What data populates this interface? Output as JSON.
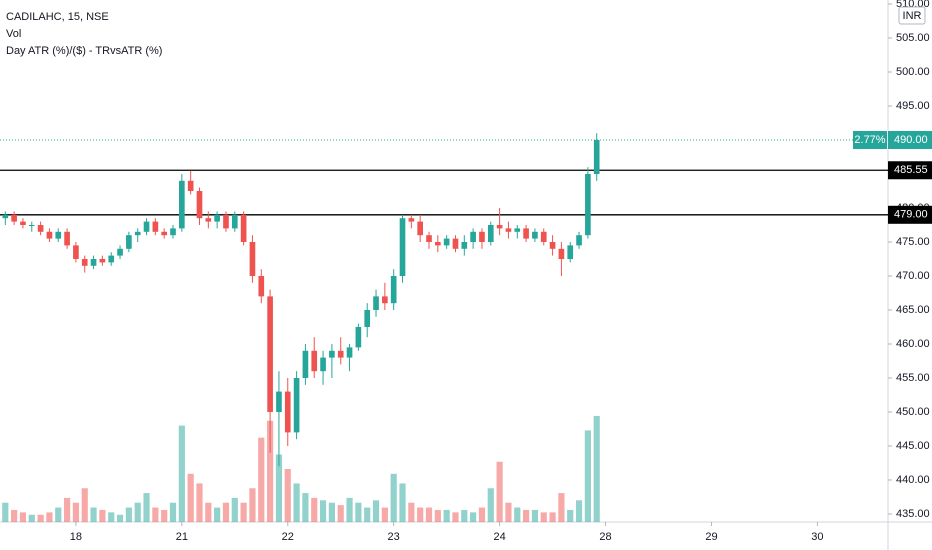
{
  "chart_data": {
    "type": "candlestick",
    "legend": [
      "CADILAHC, 15, NSE",
      "Vol",
      "Day ATR (%)/($) - TRvsATR (%)"
    ],
    "currency": "INR",
    "up_color": "#26a69a",
    "down_color": "#ef5350",
    "x": [
      0,
      1,
      2,
      3,
      4,
      5,
      6,
      7,
      8,
      9,
      10,
      11,
      12,
      13,
      14,
      15,
      16,
      17,
      18,
      19,
      20,
      21,
      22,
      23,
      24,
      25,
      26,
      27,
      28,
      29,
      30,
      31,
      32,
      33,
      34,
      35,
      36,
      37,
      38,
      39,
      40,
      41,
      42,
      43,
      44,
      45,
      46,
      47,
      48,
      49,
      50,
      51,
      52,
      53,
      54,
      55,
      56,
      57,
      58,
      59,
      60,
      61,
      62,
      63,
      64,
      65,
      66,
      67
    ],
    "ohlc": [
      [
        478.5,
        479.5,
        477.5,
        479
      ],
      [
        479,
        479.5,
        477.5,
        478
      ],
      [
        478,
        478.5,
        477,
        477.5
      ],
      [
        477.5,
        478,
        476.5,
        477.5
      ],
      [
        477.5,
        478,
        476,
        476.5
      ],
      [
        476.5,
        477,
        475,
        475.5
      ],
      [
        475.5,
        477,
        475,
        476.5
      ],
      [
        476.5,
        477,
        474,
        474.5
      ],
      [
        474.5,
        475,
        472,
        472.5
      ],
      [
        472.5,
        473,
        470.5,
        471.5
      ],
      [
        471.5,
        473,
        471,
        472.5
      ],
      [
        472.5,
        473,
        471.5,
        472
      ],
      [
        472,
        473.5,
        471.5,
        473
      ],
      [
        473,
        474.5,
        472.5,
        474
      ],
      [
        474,
        476.5,
        473.5,
        476
      ],
      [
        476,
        477,
        475,
        476.5
      ],
      [
        476.5,
        478.5,
        476,
        478
      ],
      [
        478,
        478.5,
        476,
        476.5
      ],
      [
        476.5,
        477,
        475.5,
        476
      ],
      [
        476,
        477.5,
        475.5,
        477
      ],
      [
        477,
        485,
        476.5,
        484
      ],
      [
        484,
        485.5,
        482,
        482.5
      ],
      [
        482.5,
        483,
        477.5,
        478.5
      ],
      [
        478.5,
        479.5,
        477,
        478
      ],
      [
        478,
        479.5,
        477,
        479
      ],
      [
        479,
        479.5,
        476.5,
        477
      ],
      [
        477,
        479.5,
        476.5,
        479
      ],
      [
        479,
        479.5,
        474.5,
        475
      ],
      [
        475,
        476,
        469,
        470
      ],
      [
        470,
        471,
        466,
        467
      ],
      [
        467,
        468,
        444,
        450
      ],
      [
        450,
        456,
        442,
        453
      ],
      [
        453,
        455,
        445,
        447
      ],
      [
        447,
        456,
        446,
        455
      ],
      [
        455,
        460,
        454,
        459
      ],
      [
        459,
        461,
        455,
        456
      ],
      [
        456,
        459,
        454,
        458
      ],
      [
        458,
        460,
        455,
        459
      ],
      [
        459,
        461,
        457,
        458
      ],
      [
        458,
        460,
        456,
        459.5
      ],
      [
        459.5,
        463,
        459,
        462.5
      ],
      [
        462.5,
        466,
        461,
        465
      ],
      [
        465,
        468,
        464,
        467
      ],
      [
        467,
        469,
        465,
        466
      ],
      [
        466,
        471,
        465,
        470
      ],
      [
        470,
        479,
        469,
        478.5
      ],
      [
        478.5,
        479,
        477,
        478
      ],
      [
        478,
        479,
        475,
        476
      ],
      [
        476,
        476.5,
        474,
        475
      ],
      [
        475,
        476,
        473.5,
        474.5
      ],
      [
        474.5,
        476,
        474,
        475.5
      ],
      [
        475.5,
        476,
        473.5,
        474
      ],
      [
        474,
        476,
        473,
        475
      ],
      [
        475,
        477,
        474,
        476.5
      ],
      [
        476.5,
        477,
        474,
        475
      ],
      [
        475,
        478,
        474.5,
        477.5
      ],
      [
        477.5,
        480,
        476,
        477
      ],
      [
        477,
        478,
        475.5,
        476.5
      ],
      [
        476.5,
        477.5,
        475.5,
        477
      ],
      [
        477,
        477.5,
        475,
        475.5
      ],
      [
        475.5,
        477,
        475,
        476.5
      ],
      [
        476.5,
        477,
        474.5,
        475
      ],
      [
        475,
        476,
        473,
        474
      ],
      [
        474,
        475,
        470,
        472.5
      ],
      [
        472.5,
        475,
        472,
        474.5
      ],
      [
        474.5,
        476.5,
        474,
        476
      ],
      [
        476,
        486,
        475.5,
        485
      ],
      [
        485,
        491,
        484,
        490
      ]
    ],
    "volume": [
      8,
      5,
      4,
      3,
      3,
      4,
      6,
      10,
      8,
      14,
      6,
      5,
      4,
      3,
      6,
      8,
      12,
      6,
      5,
      8,
      40,
      20,
      16,
      8,
      6,
      8,
      10,
      8,
      14,
      35,
      42,
      28,
      22,
      16,
      12,
      10,
      9,
      8,
      7,
      10,
      8,
      6,
      9,
      6,
      20,
      16,
      8,
      6,
      6,
      5,
      5,
      4,
      5,
      4,
      6,
      14,
      25,
      8,
      6,
      5,
      5,
      4,
      4,
      12,
      5,
      9,
      38,
      44
    ],
    "vlim": [
      0,
      100
    ],
    "xlim": [
      -0.6,
      100
    ],
    "xticks": [
      {
        "value": 8,
        "label": "18"
      },
      {
        "value": 20,
        "label": "21"
      },
      {
        "value": 32,
        "label": "22"
      },
      {
        "value": 44,
        "label": "23"
      },
      {
        "value": 56,
        "label": "24"
      },
      {
        "value": 68,
        "label": "28"
      },
      {
        "value": 80,
        "label": "29"
      },
      {
        "value": 92,
        "label": "30"
      }
    ],
    "ylim": [
      433.82,
      510.59
    ],
    "yticks": [
      {
        "value": 435,
        "label": "435.00"
      },
      {
        "value": 440,
        "label": "440.00"
      },
      {
        "value": 445,
        "label": "445.00"
      },
      {
        "value": 450,
        "label": "450.00"
      },
      {
        "value": 455,
        "label": "455.00"
      },
      {
        "value": 460,
        "label": "460.00"
      },
      {
        "value": 465,
        "label": "465.00"
      },
      {
        "value": 470,
        "label": "470.00"
      },
      {
        "value": 475,
        "label": "475.00"
      },
      {
        "value": 480,
        "label": "480.00"
      },
      {
        "value": 485,
        "label": "485.00"
      },
      {
        "value": 490,
        "label": "490.00"
      },
      {
        "value": 495,
        "label": "495.00"
      },
      {
        "value": 500,
        "label": "500.00"
      },
      {
        "value": 505,
        "label": "505.00"
      },
      {
        "value": 510,
        "label": "510.00"
      }
    ],
    "levels": [
      {
        "value": 485.55,
        "label": "485.55"
      },
      {
        "value": 479,
        "label": "479.00"
      }
    ],
    "last_price": {
      "value": 490,
      "label": "490.00",
      "change": "2.77%"
    }
  }
}
